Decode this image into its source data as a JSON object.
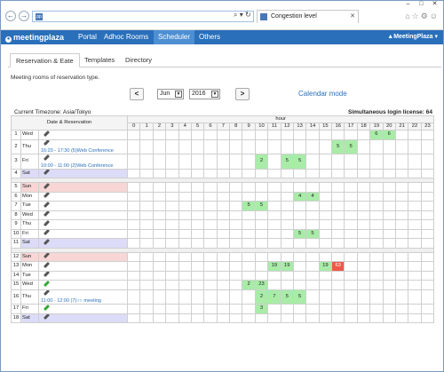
{
  "browser": {
    "tab_title": "Congestion level",
    "address_icon": "pp",
    "tools": "⌕ ▾ ↻"
  },
  "app": {
    "logo": "meetingplaza",
    "menu": [
      "Portal",
      "Adhoc Rooms",
      "Scheduler",
      "Others"
    ],
    "active_menu": "Scheduler",
    "user": "▲MeetingPlaza ▾"
  },
  "page": {
    "tabs": [
      "Reservation & Eate",
      "Templates",
      "Directory"
    ],
    "active_tab": "Reservation & Eate",
    "description": "Meeting rooms of reservation type."
  },
  "controls": {
    "prev": "<",
    "next": ">",
    "month": "Jun",
    "year": "2016",
    "calendar_mode": "Calendar mode"
  },
  "info": {
    "timezone": "Current Timezone: Asia/Tokyo",
    "license": "Simultaneous login license: 64"
  },
  "table": {
    "col_header": "Date & Reservation",
    "hour_label": "hour",
    "hours": [
      "0",
      "1",
      "2",
      "3",
      "4",
      "5",
      "6",
      "7",
      "8",
      "9",
      "10",
      "11",
      "12",
      "13",
      "14",
      "15",
      "16",
      "17",
      "18",
      "19",
      "20",
      "21",
      "22",
      "23"
    ],
    "weeks": [
      [
        {
          "d": "1",
          "w": "Wed",
          "pen": "gray",
          "cells": {
            "19": "6",
            "20": "6"
          }
        },
        {
          "d": "2",
          "w": "Thu",
          "pen": "gray",
          "event": "16:20 - 17:30 (5)Web Conference",
          "cells": {
            "16": "5",
            "17": "5"
          }
        },
        {
          "d": "3",
          "w": "Fri",
          "pen": "gray",
          "event": "10:00 - 11:00 (2)Web Conference",
          "cells": {
            "10": "2",
            "12": "5",
            "13": "5"
          }
        },
        {
          "d": "4",
          "w": "Sat",
          "pen": "gray",
          "cls": "sat",
          "cells": {}
        }
      ],
      [
        {
          "d": "5",
          "w": "Sun",
          "pen": "gray",
          "cls": "sun",
          "cells": {}
        },
        {
          "d": "6",
          "w": "Mon",
          "pen": "gray",
          "cells": {
            "13": "4",
            "14": "4"
          }
        },
        {
          "d": "7",
          "w": "Tue",
          "pen": "gray",
          "cells": {
            "9": "5",
            "10": "5"
          }
        },
        {
          "d": "8",
          "w": "Wed",
          "pen": "gray",
          "cells": {}
        },
        {
          "d": "9",
          "w": "Thu",
          "pen": "gray",
          "cells": {}
        },
        {
          "d": "10",
          "w": "Fri",
          "pen": "gray",
          "cells": {
            "13": "5",
            "14": "5"
          }
        },
        {
          "d": "11",
          "w": "Sat",
          "pen": "gray",
          "cls": "sat",
          "cells": {}
        }
      ],
      [
        {
          "d": "12",
          "w": "Sun",
          "pen": "gray",
          "cls": "sun",
          "cells": {}
        },
        {
          "d": "13",
          "w": "Mon",
          "pen": "gray",
          "cells": {
            "11": "19",
            "12": "19",
            "15": "19",
            "16": "63"
          }
        },
        {
          "d": "14",
          "w": "Tue",
          "pen": "gray",
          "cells": {}
        },
        {
          "d": "15",
          "w": "Wed",
          "pen": "green",
          "cells": {
            "9": "2",
            "10": "23"
          }
        },
        {
          "d": "16",
          "w": "Thu",
          "pen": "gray",
          "event": "11:00 - 12:00 (7)○○ meeting",
          "cells": {
            "10": "2",
            "11": "7",
            "12": "5",
            "13": "5"
          }
        },
        {
          "d": "17",
          "w": "Fri",
          "pen": "green",
          "cells": {
            "10": "3"
          }
        },
        {
          "d": "18",
          "w": "Sat",
          "pen": "gray",
          "cls": "sat",
          "cells": {}
        }
      ]
    ]
  },
  "colors": {
    "accent": "#2a6fba",
    "green": "#a8eca8",
    "red": "#ec5a4a",
    "saturday": "#dcdcf8",
    "sunday": "#f8d6d6"
  }
}
